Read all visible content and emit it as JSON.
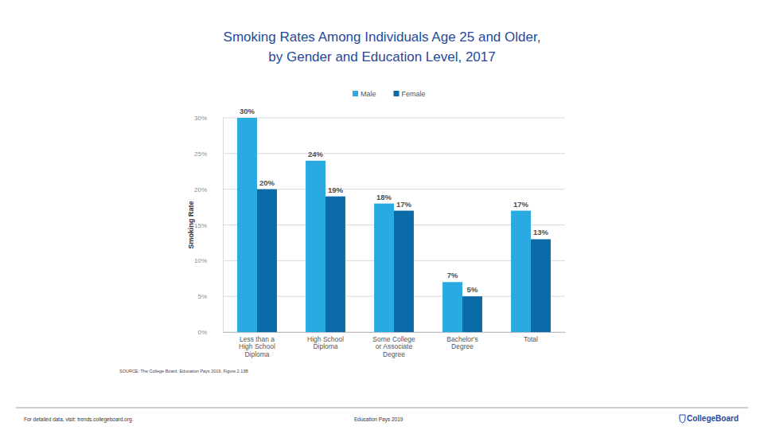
{
  "chart_data": {
    "type": "bar",
    "title": [
      "Smoking Rates Among Individuals Age 25 and Older,",
      "by Gender and Education Level, 2017"
    ],
    "y_label": "Smoking Rate",
    "categories": [
      "Less than a High School Diploma",
      "High School Diploma",
      "Some College or Associate Degree",
      "Bachelor's Degree",
      "Total"
    ],
    "series": [
      {
        "name": "Male",
        "color": "#29abe2",
        "values": [
          30,
          24,
          18,
          7,
          17
        ],
        "value_labels": [
          "30%",
          "24%",
          "18%",
          "7%",
          "17%"
        ]
      },
      {
        "name": "Female",
        "color": "#0b6aa8",
        "values": [
          20,
          19,
          17,
          5,
          13
        ],
        "value_labels": [
          "20%",
          "19%",
          "17%",
          "5%",
          "13%"
        ]
      }
    ],
    "ylim": [
      0,
      30
    ],
    "yticks": [
      {
        "value": 0,
        "label": "0%"
      },
      {
        "value": 5,
        "label": "5%"
      },
      {
        "value": 10,
        "label": "10%"
      },
      {
        "value": 15,
        "label": "15%"
      },
      {
        "value": 20,
        "label": "20%"
      },
      {
        "value": 25,
        "label": "25%"
      },
      {
        "value": 30,
        "label": "30%"
      }
    ],
    "grid": true,
    "legend": "top",
    "data_labels": true,
    "source": "SOURCE: The College Board, Education Pays 2019, Figure 2.13B",
    "footer": [
      "For detailed data, visit: trends.collegeboard.org.",
      "Education Pays 2019",
      "CollegeBoard"
    ]
  }
}
